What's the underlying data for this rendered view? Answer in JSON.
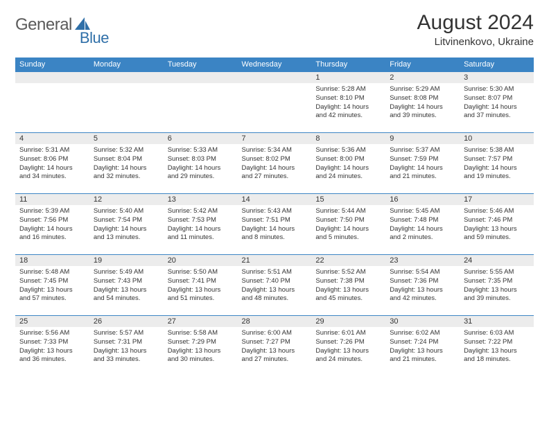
{
  "logo": {
    "text1": "General",
    "text2": "Blue",
    "color1": "#6b6b6b",
    "color2": "#2f6fa8"
  },
  "title": "August 2024",
  "location": "Litvinenkovo, Ukraine",
  "colors": {
    "header_bg": "#3b84c4",
    "header_text": "#ffffff",
    "daynum_bg": "#ececec",
    "border": "#3b84c4",
    "text": "#333333",
    "background": "#ffffff"
  },
  "day_names": [
    "Sunday",
    "Monday",
    "Tuesday",
    "Wednesday",
    "Thursday",
    "Friday",
    "Saturday"
  ],
  "weeks": [
    [
      {
        "n": "",
        "lines": []
      },
      {
        "n": "",
        "lines": []
      },
      {
        "n": "",
        "lines": []
      },
      {
        "n": "",
        "lines": []
      },
      {
        "n": "1",
        "lines": [
          "Sunrise: 5:28 AM",
          "Sunset: 8:10 PM",
          "Daylight: 14 hours and 42 minutes."
        ]
      },
      {
        "n": "2",
        "lines": [
          "Sunrise: 5:29 AM",
          "Sunset: 8:08 PM",
          "Daylight: 14 hours and 39 minutes."
        ]
      },
      {
        "n": "3",
        "lines": [
          "Sunrise: 5:30 AM",
          "Sunset: 8:07 PM",
          "Daylight: 14 hours and 37 minutes."
        ]
      }
    ],
    [
      {
        "n": "4",
        "lines": [
          "Sunrise: 5:31 AM",
          "Sunset: 8:06 PM",
          "Daylight: 14 hours and 34 minutes."
        ]
      },
      {
        "n": "5",
        "lines": [
          "Sunrise: 5:32 AM",
          "Sunset: 8:04 PM",
          "Daylight: 14 hours and 32 minutes."
        ]
      },
      {
        "n": "6",
        "lines": [
          "Sunrise: 5:33 AM",
          "Sunset: 8:03 PM",
          "Daylight: 14 hours and 29 minutes."
        ]
      },
      {
        "n": "7",
        "lines": [
          "Sunrise: 5:34 AM",
          "Sunset: 8:02 PM",
          "Daylight: 14 hours and 27 minutes."
        ]
      },
      {
        "n": "8",
        "lines": [
          "Sunrise: 5:36 AM",
          "Sunset: 8:00 PM",
          "Daylight: 14 hours and 24 minutes."
        ]
      },
      {
        "n": "9",
        "lines": [
          "Sunrise: 5:37 AM",
          "Sunset: 7:59 PM",
          "Daylight: 14 hours and 21 minutes."
        ]
      },
      {
        "n": "10",
        "lines": [
          "Sunrise: 5:38 AM",
          "Sunset: 7:57 PM",
          "Daylight: 14 hours and 19 minutes."
        ]
      }
    ],
    [
      {
        "n": "11",
        "lines": [
          "Sunrise: 5:39 AM",
          "Sunset: 7:56 PM",
          "Daylight: 14 hours and 16 minutes."
        ]
      },
      {
        "n": "12",
        "lines": [
          "Sunrise: 5:40 AM",
          "Sunset: 7:54 PM",
          "Daylight: 14 hours and 13 minutes."
        ]
      },
      {
        "n": "13",
        "lines": [
          "Sunrise: 5:42 AM",
          "Sunset: 7:53 PM",
          "Daylight: 14 hours and 11 minutes."
        ]
      },
      {
        "n": "14",
        "lines": [
          "Sunrise: 5:43 AM",
          "Sunset: 7:51 PM",
          "Daylight: 14 hours and 8 minutes."
        ]
      },
      {
        "n": "15",
        "lines": [
          "Sunrise: 5:44 AM",
          "Sunset: 7:50 PM",
          "Daylight: 14 hours and 5 minutes."
        ]
      },
      {
        "n": "16",
        "lines": [
          "Sunrise: 5:45 AM",
          "Sunset: 7:48 PM",
          "Daylight: 14 hours and 2 minutes."
        ]
      },
      {
        "n": "17",
        "lines": [
          "Sunrise: 5:46 AM",
          "Sunset: 7:46 PM",
          "Daylight: 13 hours and 59 minutes."
        ]
      }
    ],
    [
      {
        "n": "18",
        "lines": [
          "Sunrise: 5:48 AM",
          "Sunset: 7:45 PM",
          "Daylight: 13 hours and 57 minutes."
        ]
      },
      {
        "n": "19",
        "lines": [
          "Sunrise: 5:49 AM",
          "Sunset: 7:43 PM",
          "Daylight: 13 hours and 54 minutes."
        ]
      },
      {
        "n": "20",
        "lines": [
          "Sunrise: 5:50 AM",
          "Sunset: 7:41 PM",
          "Daylight: 13 hours and 51 minutes."
        ]
      },
      {
        "n": "21",
        "lines": [
          "Sunrise: 5:51 AM",
          "Sunset: 7:40 PM",
          "Daylight: 13 hours and 48 minutes."
        ]
      },
      {
        "n": "22",
        "lines": [
          "Sunrise: 5:52 AM",
          "Sunset: 7:38 PM",
          "Daylight: 13 hours and 45 minutes."
        ]
      },
      {
        "n": "23",
        "lines": [
          "Sunrise: 5:54 AM",
          "Sunset: 7:36 PM",
          "Daylight: 13 hours and 42 minutes."
        ]
      },
      {
        "n": "24",
        "lines": [
          "Sunrise: 5:55 AM",
          "Sunset: 7:35 PM",
          "Daylight: 13 hours and 39 minutes."
        ]
      }
    ],
    [
      {
        "n": "25",
        "lines": [
          "Sunrise: 5:56 AM",
          "Sunset: 7:33 PM",
          "Daylight: 13 hours and 36 minutes."
        ]
      },
      {
        "n": "26",
        "lines": [
          "Sunrise: 5:57 AM",
          "Sunset: 7:31 PM",
          "Daylight: 13 hours and 33 minutes."
        ]
      },
      {
        "n": "27",
        "lines": [
          "Sunrise: 5:58 AM",
          "Sunset: 7:29 PM",
          "Daylight: 13 hours and 30 minutes."
        ]
      },
      {
        "n": "28",
        "lines": [
          "Sunrise: 6:00 AM",
          "Sunset: 7:27 PM",
          "Daylight: 13 hours and 27 minutes."
        ]
      },
      {
        "n": "29",
        "lines": [
          "Sunrise: 6:01 AM",
          "Sunset: 7:26 PM",
          "Daylight: 13 hours and 24 minutes."
        ]
      },
      {
        "n": "30",
        "lines": [
          "Sunrise: 6:02 AM",
          "Sunset: 7:24 PM",
          "Daylight: 13 hours and 21 minutes."
        ]
      },
      {
        "n": "31",
        "lines": [
          "Sunrise: 6:03 AM",
          "Sunset: 7:22 PM",
          "Daylight: 13 hours and 18 minutes."
        ]
      }
    ]
  ]
}
